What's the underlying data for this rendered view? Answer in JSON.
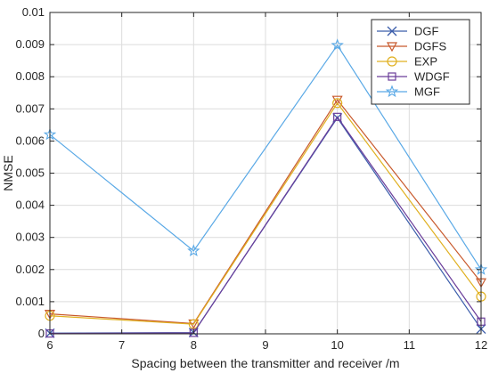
{
  "chart_data": {
    "type": "line",
    "title": "",
    "xlabel": "Spacing between the transmitter and receiver /m",
    "ylabel": "NMSE",
    "xlim": [
      6,
      12
    ],
    "ylim": [
      0,
      0.01
    ],
    "xticks": [
      6,
      7,
      8,
      9,
      10,
      11,
      12
    ],
    "xtick_labels": [
      "6",
      "7",
      "8",
      "9",
      "10",
      "11",
      "12"
    ],
    "yticks": [
      0,
      0.001,
      0.002,
      0.003,
      0.004,
      0.005,
      0.006,
      0.007,
      0.008,
      0.009,
      0.01
    ],
    "ytick_labels": [
      "0",
      "0.001",
      "0.002",
      "0.003",
      "0.004",
      "0.005",
      "0.006",
      "0.007",
      "0.008",
      "0.009",
      "0.01"
    ],
    "grid": true,
    "legend_position": "top-right",
    "x": [
      6,
      8,
      10,
      12
    ],
    "series": [
      {
        "name": "DGF",
        "values": [
          2e-05,
          4e-05,
          0.00672,
          0.00015
        ],
        "color": "#3b5dab",
        "marker": "x"
      },
      {
        "name": "DGFS",
        "values": [
          0.00062,
          0.00032,
          0.00728,
          0.0016
        ],
        "color": "#c8592c",
        "marker": "triangle-down"
      },
      {
        "name": "EXP",
        "values": [
          0.00056,
          0.0003,
          0.00718,
          0.00116
        ],
        "color": "#e0b020",
        "marker": "circle"
      },
      {
        "name": "WDGF",
        "values": [
          1e-05,
          3e-05,
          0.00675,
          0.00038
        ],
        "color": "#6a3d9a",
        "marker": "square"
      },
      {
        "name": "MGF",
        "values": [
          0.0062,
          0.00258,
          0.00898,
          0.002
        ],
        "color": "#5aa9e6",
        "marker": "star"
      }
    ]
  }
}
